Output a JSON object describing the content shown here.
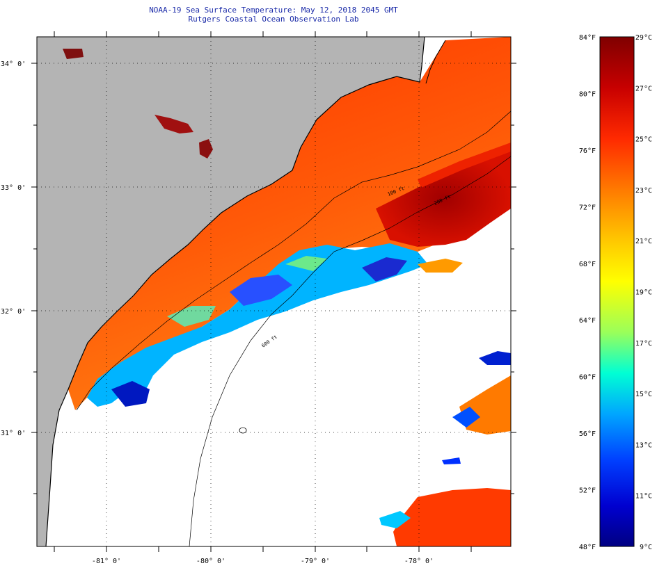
{
  "header": {
    "title": "NOAA-19 Sea Surface Temperature:  May 12, 2018 2045 GMT",
    "subtitle": "Rutgers Coastal Ocean Observation Lab"
  },
  "map": {
    "lat_labels": [
      "34° 0'",
      "33° 0'",
      "32° 0'",
      "31° 0'"
    ],
    "lon_labels": [
      "-81° 0'",
      "-80° 0'",
      "-79° 0'",
      "-78° 0'"
    ],
    "contour_labels": [
      "100 ft",
      "200 ft",
      "600 ft"
    ],
    "colors": {
      "land": "#b4b4b4",
      "no_data": "#ffffff",
      "coast": "#000000"
    }
  },
  "legend": {
    "fahrenheit_labels": [
      "84°F",
      "80°F",
      "76°F",
      "72°F",
      "68°F",
      "64°F",
      "60°F",
      "56°F",
      "52°F",
      "48°F"
    ],
    "celsius_labels": [
      "29°C",
      "27°C",
      "25°C",
      "23°C",
      "21°C",
      "19°C",
      "17°C",
      "15°C",
      "13°C",
      "11°C",
      "9°C"
    ],
    "scale_stops": [
      "#7f0000",
      "#c80000",
      "#ff2a00",
      "#ff7a00",
      "#ffc800",
      "#ffff00",
      "#9aff5a",
      "#00ffd4",
      "#00a6ff",
      "#0040ff",
      "#0000d0",
      "#000082"
    ]
  }
}
